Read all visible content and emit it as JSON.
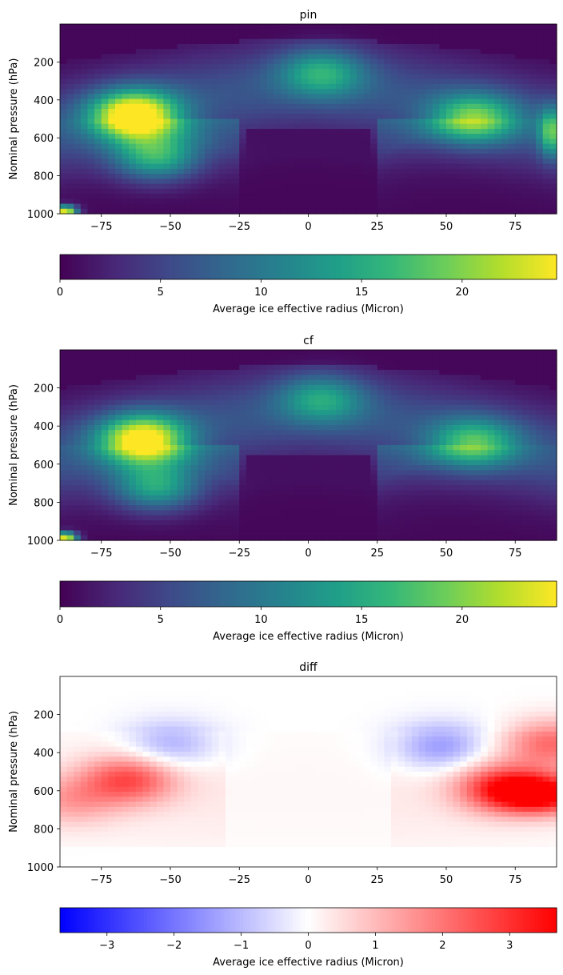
{
  "chart_data": [
    {
      "type": "heatmap",
      "title": "pin",
      "xlabel": "",
      "ylabel": "Nominal pressure (hPa)",
      "x_ticks": [
        -75,
        -50,
        -25,
        0,
        25,
        50,
        75
      ],
      "y_ticks": [
        200,
        400,
        600,
        800,
        1000
      ],
      "xlim": [
        -90,
        90
      ],
      "ylim": [
        0,
        1000
      ],
      "y_inverted": true,
      "colormap": "viridis",
      "colorbar": {
        "label": "Average ice effective radius (Micron)",
        "range": [
          0,
          24.7
        ],
        "ticks": [
          0,
          5,
          10,
          15,
          20
        ]
      },
      "features": [
        {
          "lat": -63,
          "p": 480,
          "value": 24
        },
        {
          "lat": -55,
          "p": 700,
          "value": 14
        },
        {
          "lat": 60,
          "p": 500,
          "value": 15
        },
        {
          "lat": 88,
          "p": 570,
          "value": 13
        },
        {
          "lat": 5,
          "p": 260,
          "value": 11
        },
        {
          "lat": -88,
          "p": 985,
          "value": 24
        }
      ]
    },
    {
      "type": "heatmap",
      "title": "cf",
      "xlabel": "",
      "ylabel": "Nominal pressure (hPa)",
      "x_ticks": [
        -75,
        -50,
        -25,
        0,
        25,
        50,
        75
      ],
      "y_ticks": [
        200,
        400,
        600,
        800,
        1000
      ],
      "xlim": [
        -90,
        90
      ],
      "ylim": [
        0,
        1000
      ],
      "y_inverted": true,
      "colormap": "viridis",
      "colorbar": {
        "label": "Average ice effective radius (Micron)",
        "range": [
          0,
          24.7
        ],
        "ticks": [
          0,
          5,
          10,
          15,
          20
        ]
      },
      "features": [
        {
          "lat": -60,
          "p": 470,
          "value": 22
        },
        {
          "lat": -55,
          "p": 720,
          "value": 13
        },
        {
          "lat": 60,
          "p": 490,
          "value": 13
        },
        {
          "lat": 5,
          "p": 260,
          "value": 10
        },
        {
          "lat": -88,
          "p": 985,
          "value": 24
        }
      ]
    },
    {
      "type": "heatmap",
      "title": "diff",
      "xlabel": "",
      "ylabel": "Nominal pressure (hPa)",
      "x_ticks": [
        -75,
        -50,
        -25,
        0,
        25,
        50,
        75
      ],
      "y_ticks": [
        200,
        400,
        600,
        800,
        1000
      ],
      "xlim": [
        -90,
        90
      ],
      "ylim": [
        0,
        1000
      ],
      "y_inverted": true,
      "colormap": "bwr",
      "colorbar": {
        "label": "Average ice effective radius (Micron)",
        "range": [
          -3.7,
          3.7
        ],
        "ticks": [
          -3,
          -2,
          -1,
          0,
          1,
          2,
          3
        ]
      },
      "features": [
        {
          "lat": 85,
          "p": 620,
          "value": 3.6
        },
        {
          "lat": 70,
          "p": 580,
          "value": 2.6
        },
        {
          "lat": -65,
          "p": 540,
          "value": 2.4
        },
        {
          "lat": -50,
          "p": 360,
          "value": -1.3
        },
        {
          "lat": 48,
          "p": 370,
          "value": -1.6
        },
        {
          "lat": -86,
          "p": 650,
          "value": 1.2
        },
        {
          "lat": 88,
          "p": 350,
          "value": 2.0
        }
      ]
    }
  ]
}
